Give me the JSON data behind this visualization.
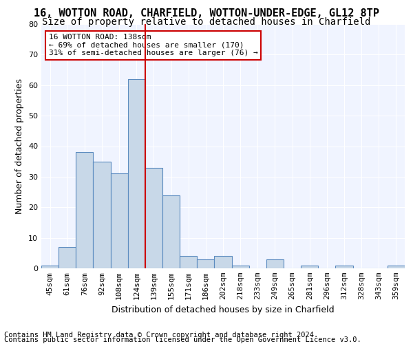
{
  "title1": "16, WOTTON ROAD, CHARFIELD, WOTTON-UNDER-EDGE, GL12 8TP",
  "title2": "Size of property relative to detached houses in Charfield",
  "xlabel": "Distribution of detached houses by size in Charfield",
  "ylabel": "Number of detached properties",
  "footer1": "Contains HM Land Registry data © Crown copyright and database right 2024.",
  "footer2": "Contains public sector information licensed under the Open Government Licence v3.0.",
  "annotation_line1": "16 WOTTON ROAD: 138sqm",
  "annotation_line2": "← 69% of detached houses are smaller (170)",
  "annotation_line3": "31% of semi-detached houses are larger (76) →",
  "property_size": 138,
  "bar_color": "#c8d8e8",
  "bar_edge_color": "#5a8abf",
  "vline_color": "#cc0000",
  "annotation_box_edge": "#cc0000",
  "background_color": "#f0f4ff",
  "categories": [
    "45sqm",
    "61sqm",
    "76sqm",
    "92sqm",
    "108sqm",
    "124sqm",
    "139sqm",
    "155sqm",
    "171sqm",
    "186sqm",
    "202sqm",
    "218sqm",
    "233sqm",
    "249sqm",
    "265sqm",
    "281sqm",
    "296sqm",
    "312sqm",
    "328sqm",
    "343sqm",
    "359sqm"
  ],
  "values": [
    1,
    7,
    38,
    35,
    31,
    62,
    33,
    24,
    4,
    3,
    4,
    1,
    0,
    3,
    0,
    1,
    0,
    1,
    0,
    0,
    1
  ],
  "ylim": [
    0,
    80
  ],
  "yticks": [
    0,
    10,
    20,
    30,
    40,
    50,
    60,
    70,
    80
  ],
  "vline_x_index": 6,
  "title1_fontsize": 11,
  "title2_fontsize": 10,
  "axis_label_fontsize": 9,
  "tick_fontsize": 8,
  "footer_fontsize": 7.5
}
